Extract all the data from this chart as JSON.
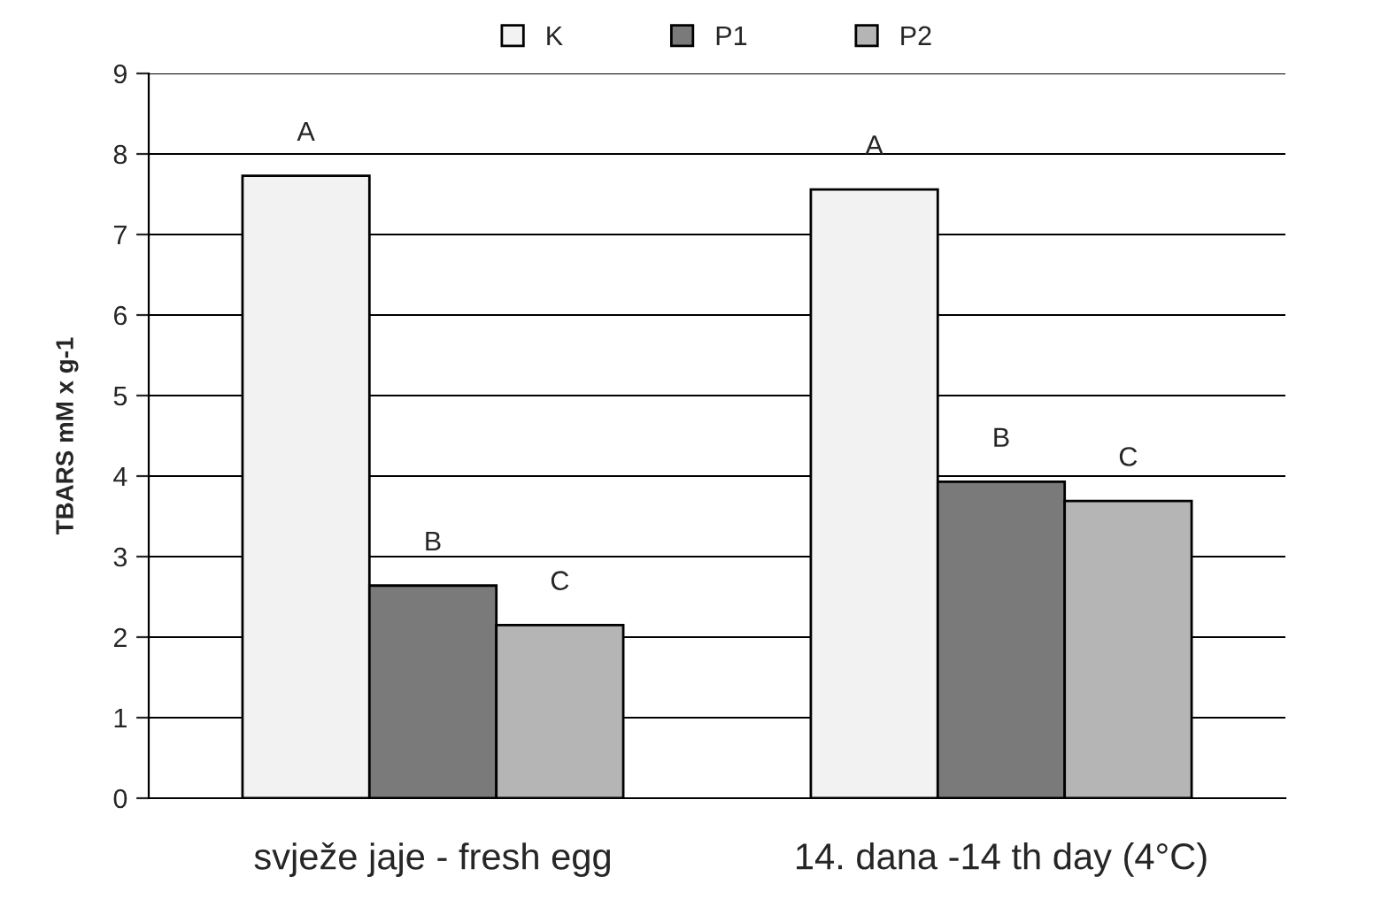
{
  "chart_data": {
    "type": "bar",
    "ylabel": "TBARS mM x g-1",
    "categories": [
      "svježe jaje - fresh egg",
      "14. dana -14 th day (4°C)"
    ],
    "series": [
      {
        "name": "K",
        "color": "#f2f2f2",
        "values": [
          7.73,
          7.56
        ]
      },
      {
        "name": "P1",
        "color": "#7a7a7a",
        "values": [
          2.64,
          3.93
        ]
      },
      {
        "name": "P2",
        "color": "#b5b5b5",
        "values": [
          2.15,
          3.69
        ]
      }
    ],
    "ylim": [
      0,
      9
    ],
    "yticks": [
      0,
      1,
      2,
      3,
      4,
      5,
      6,
      7,
      8,
      9
    ],
    "grid": "y",
    "legend": "top",
    "annotations": [
      "A",
      "B",
      "C",
      "A",
      "B",
      "C"
    ]
  }
}
